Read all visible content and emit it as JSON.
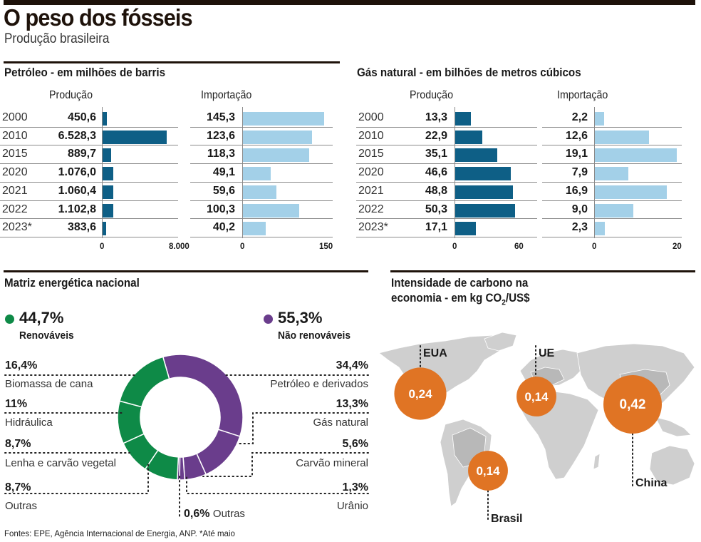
{
  "header": {
    "title": "O peso dos fósseis",
    "subtitle": "Produção brasileira"
  },
  "chart_data": [
    {
      "type": "bar",
      "title": "Petróleo - em milhões de barris",
      "categories": [
        "2000",
        "2010",
        "2015",
        "2020",
        "2021",
        "2022",
        "2023*"
      ],
      "series": [
        {
          "name": "Produção",
          "values": [
            450.6,
            6528.3,
            889.7,
            1076.0,
            1060.4,
            1102.8,
            383.6
          ],
          "labels": [
            "450,6",
            "6.528,3",
            "889,7",
            "1.076,0",
            "1.060,4",
            "1.102,8",
            "383,6"
          ],
          "xlim": [
            0,
            8000
          ],
          "ticks": [
            "0",
            "8.000"
          ],
          "color": "#0e5f86"
        },
        {
          "name": "Importação",
          "values": [
            145.3,
            123.6,
            118.3,
            49.1,
            59.6,
            100.3,
            40.2
          ],
          "labels": [
            "145,3",
            "123,6",
            "118,3",
            "49,1",
            "59,6",
            "100,3",
            "40,2"
          ],
          "xlim": [
            0,
            150
          ],
          "ticks": [
            "0",
            "150"
          ],
          "color": "#a3d0e8"
        }
      ]
    },
    {
      "type": "bar",
      "title": "Gás natural - em bilhões de metros cúbicos",
      "categories": [
        "2000",
        "2010",
        "2015",
        "2020",
        "2021",
        "2022",
        "2023*"
      ],
      "series": [
        {
          "name": "Produção",
          "values": [
            13.3,
            22.9,
            35.1,
            46.6,
            48.8,
            50.3,
            17.1
          ],
          "labels": [
            "13,3",
            "22,9",
            "35,1",
            "46,6",
            "48,8",
            "50,3",
            "17,1"
          ],
          "xlim": [
            0,
            60
          ],
          "ticks": [
            "0",
            "60"
          ],
          "color": "#0e5f86"
        },
        {
          "name": "Importação",
          "values": [
            2.2,
            12.6,
            19.1,
            7.9,
            16.9,
            9.0,
            2.3
          ],
          "labels": [
            "2,2",
            "12,6",
            "19,1",
            "7,9",
            "16,9",
            "9,0",
            "2,3"
          ],
          "xlim": [
            0,
            20
          ],
          "ticks": [
            "0",
            "20"
          ],
          "color": "#a3d0e8"
        }
      ]
    },
    {
      "type": "pie",
      "title": "Matriz energética nacional",
      "groups": [
        {
          "name": "Renováveis",
          "value": 44.7,
          "label": "44,7%",
          "color": "#0e8a47"
        },
        {
          "name": "Não renováveis",
          "value": 55.3,
          "label": "55,3%",
          "color": "#6a3d8c"
        }
      ],
      "slices": [
        {
          "name": "Petróleo e derivados",
          "value": 34.4,
          "label": "34,4%",
          "group": "Não renováveis"
        },
        {
          "name": "Gás natural",
          "value": 13.3,
          "label": "13,3%",
          "group": "Não renováveis"
        },
        {
          "name": "Carvão mineral",
          "value": 5.6,
          "label": "5,6%",
          "group": "Não renováveis"
        },
        {
          "name": "Urânio",
          "value": 1.3,
          "label": "1,3%",
          "group": "Não renováveis"
        },
        {
          "name": "Outras",
          "value": 0.6,
          "label": "0,6%",
          "group": "Não renováveis"
        },
        {
          "name": "Outras",
          "value": 8.7,
          "label": "8,7%",
          "group": "Renováveis"
        },
        {
          "name": "Lenha e carvão vegetal",
          "value": 8.7,
          "label": "8,7%",
          "group": "Renováveis"
        },
        {
          "name": "Hidráulica",
          "value": 11,
          "label": "11%",
          "group": "Renováveis"
        },
        {
          "name": "Biomassa de cana",
          "value": 16.4,
          "label": "16,4%",
          "group": "Renováveis"
        }
      ]
    },
    {
      "type": "scatter",
      "title_line1": "Intensidade de carbono na",
      "title_line2_pre": "economia - em kg CO",
      "title_line2_sub": "2",
      "title_line2_post": "/US$",
      "unit": "kg CO2/US$",
      "points": [
        {
          "name": "EUA",
          "value": 0.24,
          "label": "0,24"
        },
        {
          "name": "UE",
          "value": 0.14,
          "label": "0,14"
        },
        {
          "name": "China",
          "value": 0.42,
          "label": "0,42"
        },
        {
          "name": "Brasil",
          "value": 0.14,
          "label": "0,14"
        }
      ],
      "bubble_color": "#e07424"
    }
  ],
  "footer": {
    "source": "Fontes: EPE, Agência Internacional de Energia, ANP. *Até maio"
  }
}
